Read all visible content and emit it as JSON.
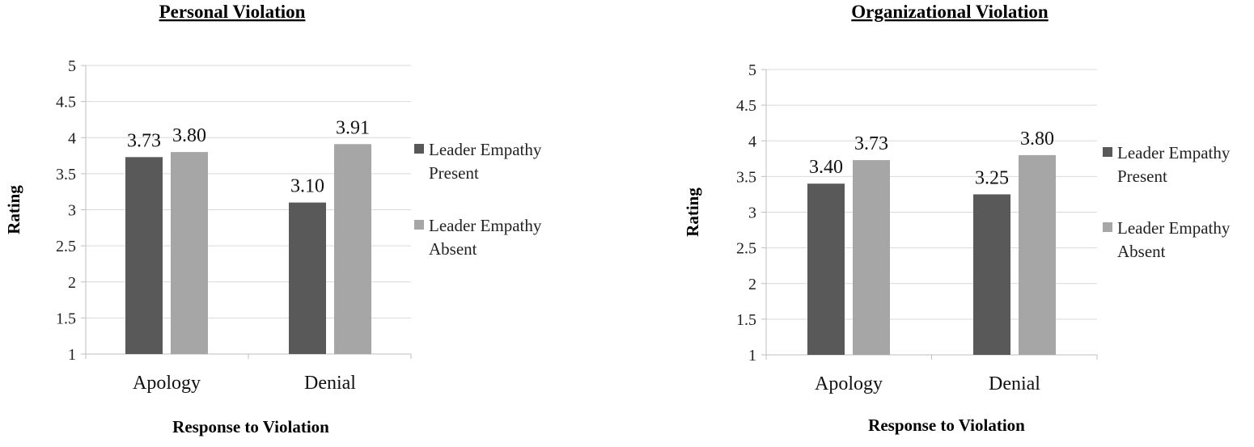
{
  "chart_data": [
    {
      "type": "bar",
      "title": "Personal Violation",
      "xlabel": "Response to Violation",
      "ylabel": "Rating",
      "ylim": [
        1,
        5
      ],
      "yticks": [
        "1",
        "1.5",
        "2",
        "2.5",
        "3",
        "3.5",
        "4",
        "4.5",
        "5"
      ],
      "grid": true,
      "legend_position": "right",
      "categories": [
        "Apology",
        "Denial"
      ],
      "series": [
        {
          "name": "Leader Empathy Present",
          "legend_lines": [
            "Leader Empathy",
            "Present"
          ],
          "color": "#595959",
          "values": [
            3.73,
            3.1
          ],
          "labels": [
            "3.73",
            "3.10"
          ]
        },
        {
          "name": "Leader Empathy Absent",
          "legend_lines": [
            "Leader Empathy",
            "Absent"
          ],
          "color": "#a6a6a6",
          "values": [
            3.8,
            3.91
          ],
          "labels": [
            "3.80",
            "3.91"
          ]
        }
      ]
    },
    {
      "type": "bar",
      "title": "Organizational Violation",
      "xlabel": "Response to Violation",
      "ylabel": "Rating",
      "ylim": [
        1,
        5
      ],
      "yticks": [
        "1",
        "1.5",
        "2",
        "2.5",
        "3",
        "3.5",
        "4",
        "4.5",
        "5"
      ],
      "grid": true,
      "legend_position": "right",
      "categories": [
        "Apology",
        "Denial"
      ],
      "series": [
        {
          "name": "Leader Empathy Present",
          "legend_lines": [
            "Leader Empathy",
            "Present"
          ],
          "color": "#595959",
          "values": [
            3.4,
            3.25
          ],
          "labels": [
            "3.40",
            "3.25"
          ]
        },
        {
          "name": "Leader Empathy Absent",
          "legend_lines": [
            "Leader Empathy",
            "Absent"
          ],
          "color": "#a6a6a6",
          "values": [
            3.73,
            3.8
          ],
          "labels": [
            "3.73",
            "3.80"
          ]
        }
      ]
    }
  ]
}
